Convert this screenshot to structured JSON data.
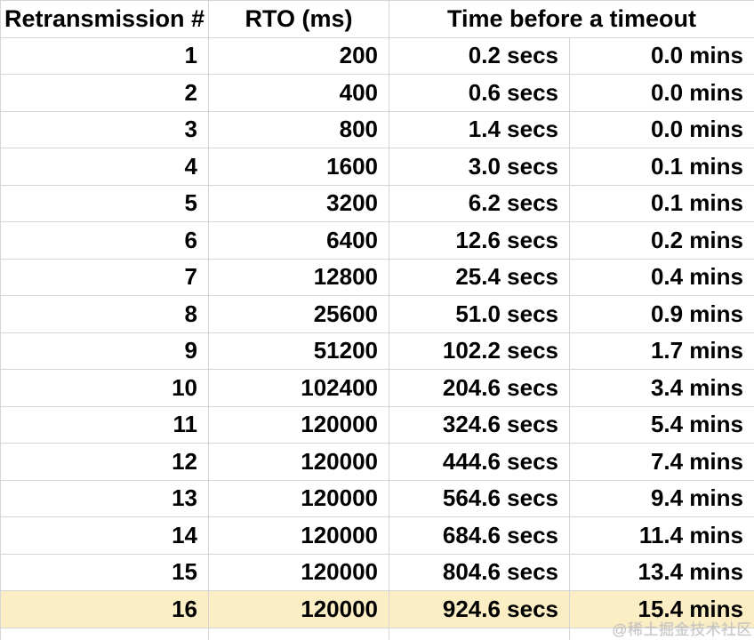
{
  "page": {
    "background": "#ffffff",
    "grid_color": "#d6d6d6",
    "highlight_color": "#fbeec5",
    "text_color": "#000000"
  },
  "table": {
    "headers": [
      "Retransmission #",
      "RTO (ms)",
      "Time before a timeout"
    ],
    "rows": [
      {
        "n": "1",
        "rto": "200",
        "secs": "0.2 secs",
        "mins": "0.0 mins"
      },
      {
        "n": "2",
        "rto": "400",
        "secs": "0.6 secs",
        "mins": "0.0 mins"
      },
      {
        "n": "3",
        "rto": "800",
        "secs": "1.4 secs",
        "mins": "0.0 mins"
      },
      {
        "n": "4",
        "rto": "1600",
        "secs": "3.0 secs",
        "mins": "0.1 mins"
      },
      {
        "n": "5",
        "rto": "3200",
        "secs": "6.2 secs",
        "mins": "0.1 mins"
      },
      {
        "n": "6",
        "rto": "6400",
        "secs": "12.6 secs",
        "mins": "0.2 mins"
      },
      {
        "n": "7",
        "rto": "12800",
        "secs": "25.4 secs",
        "mins": "0.4 mins"
      },
      {
        "n": "8",
        "rto": "25600",
        "secs": "51.0 secs",
        "mins": "0.9 mins"
      },
      {
        "n": "9",
        "rto": "51200",
        "secs": "102.2 secs",
        "mins": "1.7 mins"
      },
      {
        "n": "10",
        "rto": "102400",
        "secs": "204.6 secs",
        "mins": "3.4 mins"
      },
      {
        "n": "11",
        "rto": "120000",
        "secs": "324.6 secs",
        "mins": "5.4 mins"
      },
      {
        "n": "12",
        "rto": "120000",
        "secs": "444.6 secs",
        "mins": "7.4 mins"
      },
      {
        "n": "13",
        "rto": "120000",
        "secs": "564.6 secs",
        "mins": "9.4 mins"
      },
      {
        "n": "14",
        "rto": "120000",
        "secs": "684.6 secs",
        "mins": "11.4 mins"
      },
      {
        "n": "15",
        "rto": "120000",
        "secs": "804.6 secs",
        "mins": "13.4 mins"
      },
      {
        "n": "16",
        "rto": "120000",
        "secs": "924.6 secs",
        "mins": "15.4 mins"
      }
    ],
    "highlighted_row": 16
  },
  "watermark": {
    "text": "@稀土掘金技术社区"
  }
}
